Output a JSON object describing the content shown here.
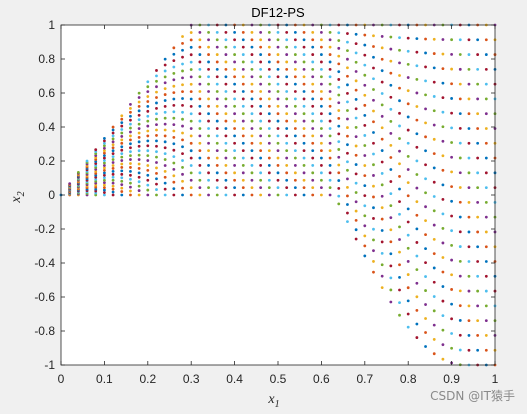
{
  "watermark": "CSDN @IT猿手",
  "chart_data": {
    "type": "scatter",
    "title": "DF12-PS",
    "xlabel": "x",
    "xlabel_sub": "1",
    "ylabel": "x",
    "ylabel_sub": "2",
    "xlim": [
      0,
      1
    ],
    "ylim": [
      -1,
      1
    ],
    "xticks": [
      "0",
      "0.1",
      "0.2",
      "0.3",
      "0.4",
      "0.5",
      "0.6",
      "0.7",
      "0.8",
      "0.9",
      "1"
    ],
    "yticks": [
      "-1",
      "-0.8",
      "-0.6",
      "-0.4",
      "-0.2",
      "0",
      "0.2",
      "0.4",
      "0.6",
      "0.8",
      "1"
    ],
    "grid": false,
    "legend": "none",
    "x_spacing": 0.02,
    "x_start": 0.0,
    "x_end": 1.0,
    "points_per_column": 24,
    "upper_envelope": "y_max = min(1, 3.3 * x) for x < 0.3",
    "lower_curve": "y = -sin(pi*x)-like lower curves for x > 0.62 reaching -1 near x = 0.93",
    "series_colors": [
      "#0072bd",
      "#d95319",
      "#edb120",
      "#7e2f8e",
      "#77ac30",
      "#4dbeee",
      "#a2142f"
    ]
  }
}
